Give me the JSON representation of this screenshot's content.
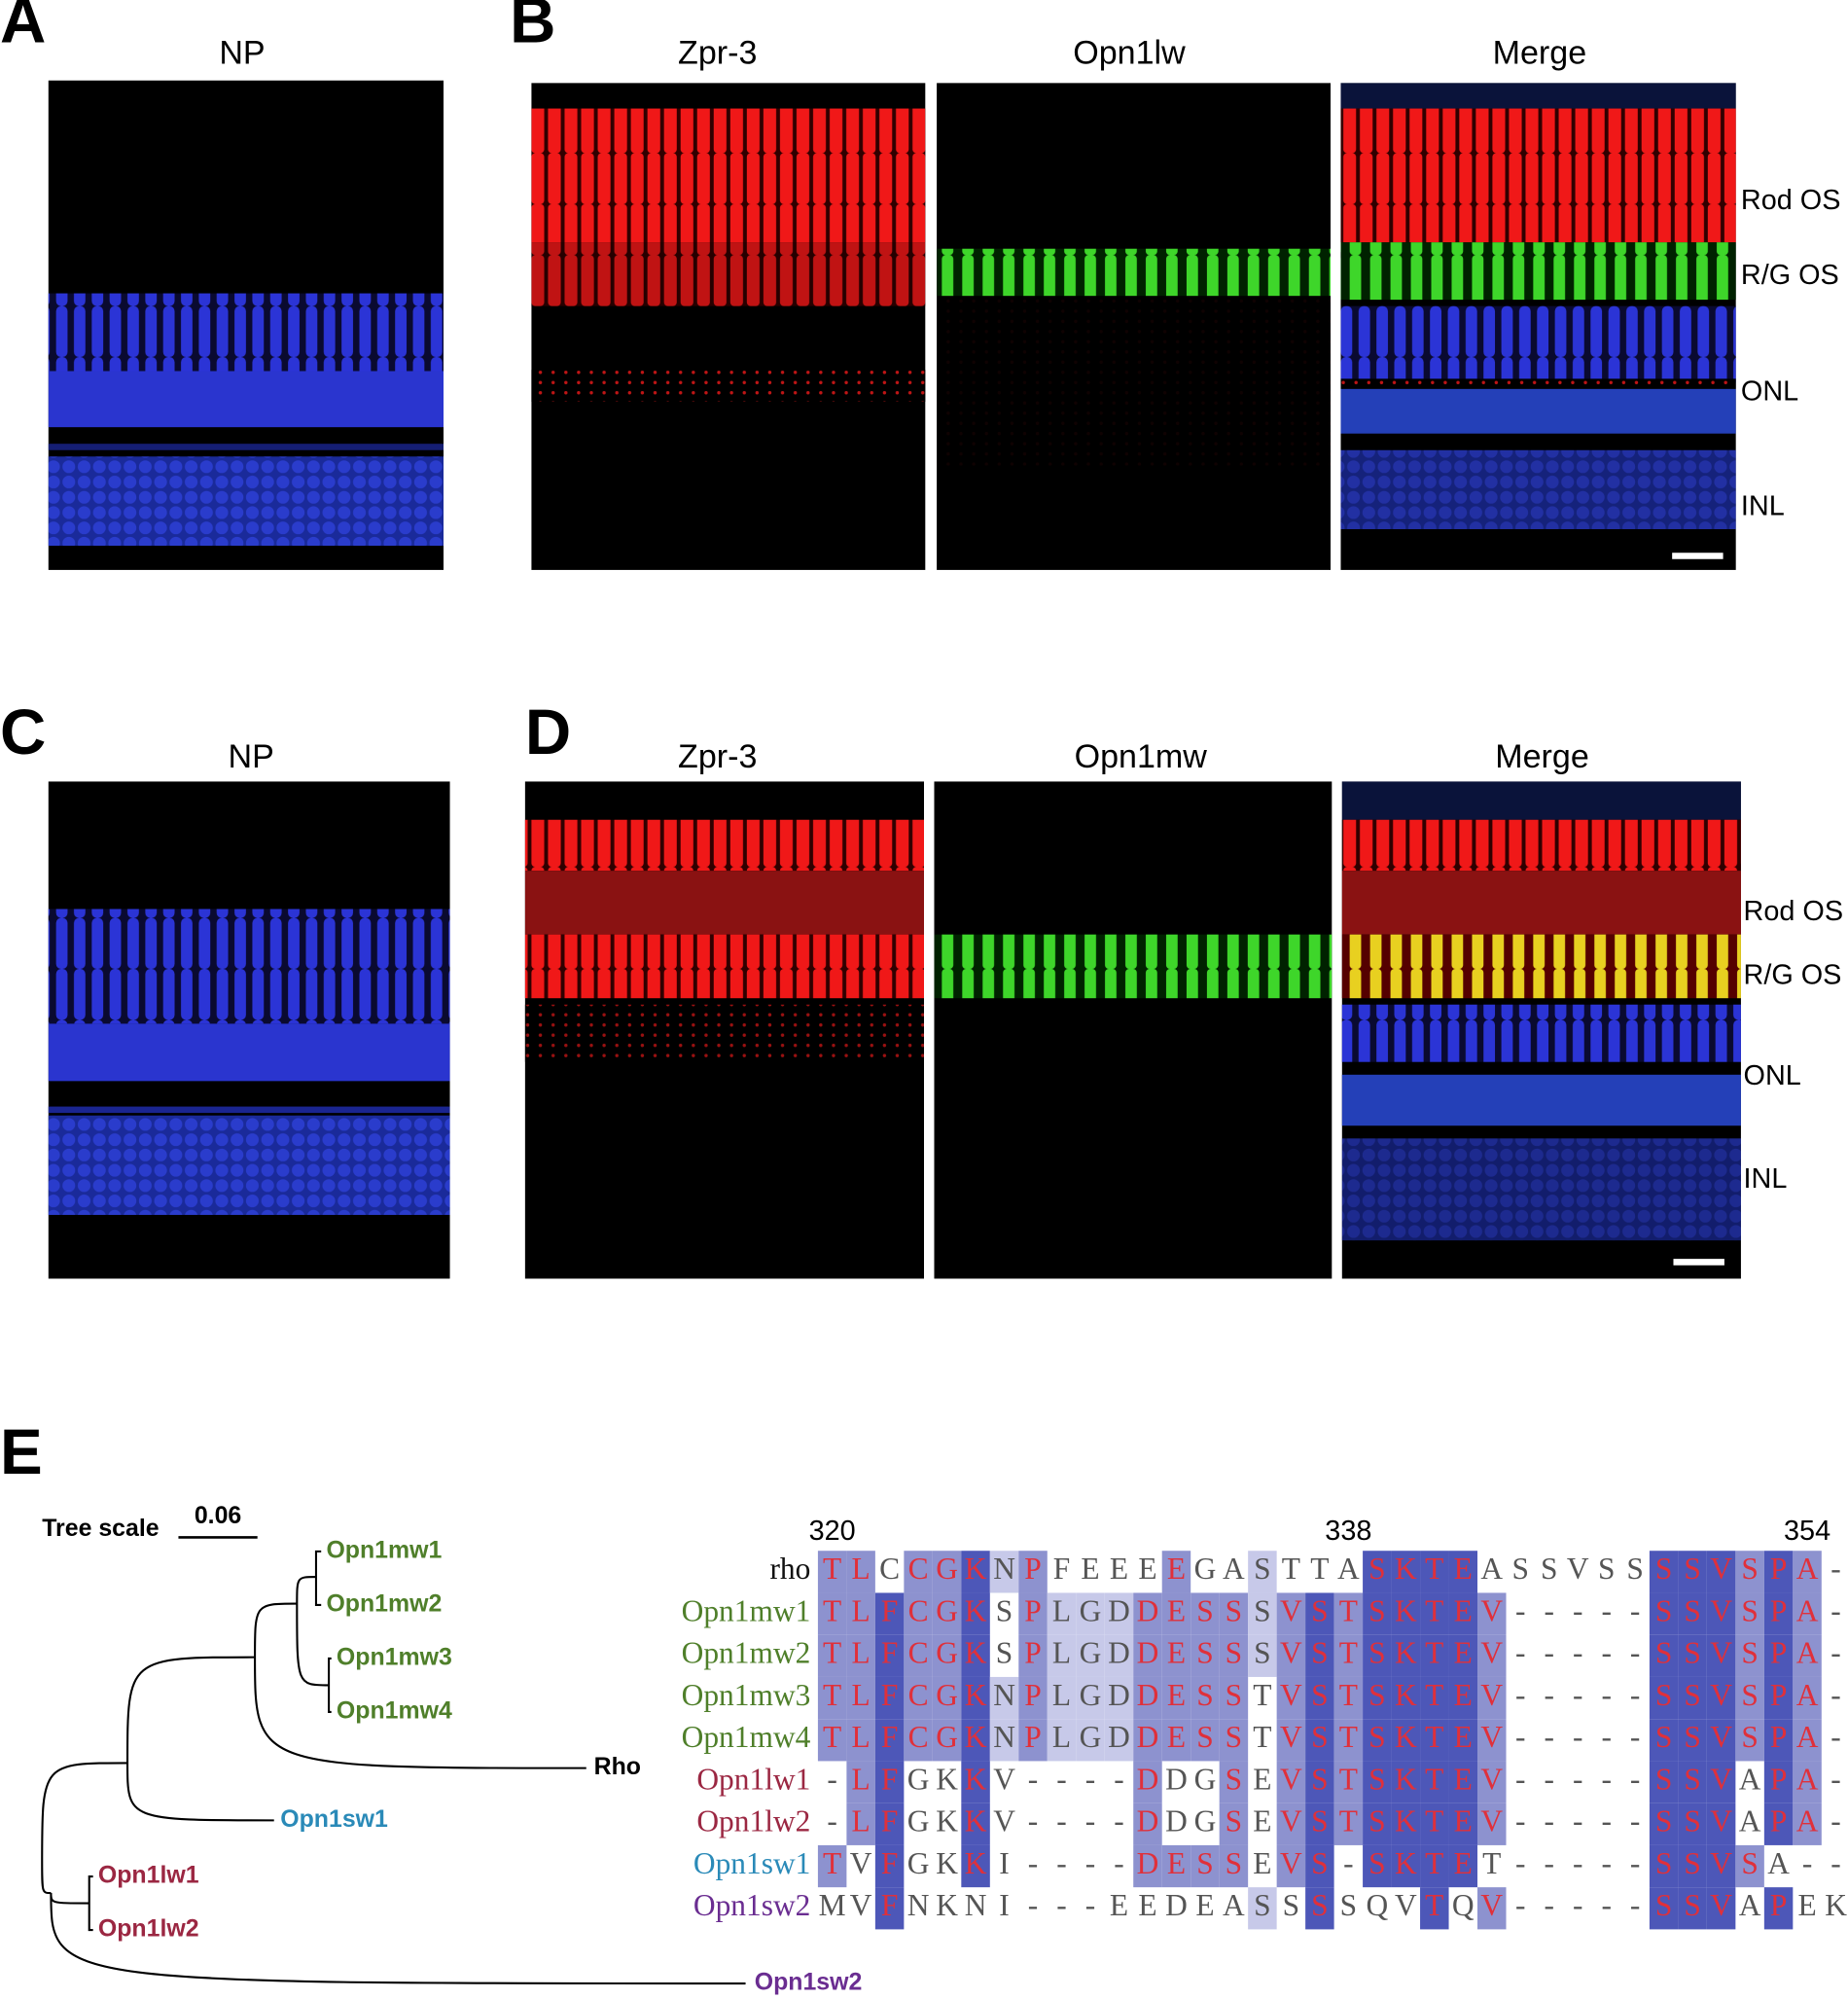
{
  "figure": {
    "A": {
      "label": "A",
      "title": "NP"
    },
    "B": {
      "label": "B",
      "titles": [
        "Zpr-3",
        "Opn1lw",
        "Merge"
      ],
      "layers": [
        "Rod OS",
        "R/G OS",
        "ONL",
        "INL"
      ]
    },
    "C": {
      "label": "C",
      "title": "NP"
    },
    "D": {
      "label": "D",
      "titles": [
        "Zpr-3",
        "Opn1mw",
        "Merge"
      ],
      "layers": [
        "Rod OS",
        "R/G OS",
        "ONL",
        "INL"
      ]
    },
    "E": {
      "label": "E",
      "tree_scale_label": "Tree scale",
      "tree_scale": 0.06,
      "tree_leaves": [
        {
          "name": "Opn1mw1",
          "color": "#4f7f2a"
        },
        {
          "name": "Opn1mw2",
          "color": "#4f7f2a"
        },
        {
          "name": "Opn1mw3",
          "color": "#4f7f2a"
        },
        {
          "name": "Opn1mw4",
          "color": "#4f7f2a"
        },
        {
          "name": "Rho",
          "color": "#000000"
        },
        {
          "name": "Opn1sw1",
          "color": "#2a8ab8"
        },
        {
          "name": "Opn1lw1",
          "color": "#9b2742"
        },
        {
          "name": "Opn1lw2",
          "color": "#9b2742"
        },
        {
          "name": "Opn1sw2",
          "color": "#6a2d91"
        }
      ],
      "positions": [
        320,
        338,
        354
      ],
      "alignment": [
        {
          "name": "rho",
          "color": "#111111",
          "residues": [
            "T",
            "L",
            "C",
            "C",
            "G",
            "K",
            "N",
            "P",
            "F",
            "E",
            "E",
            "E",
            "E",
            "G",
            "A",
            "S",
            "T",
            "T",
            "A",
            "S",
            "K",
            "T",
            "E",
            "A",
            "S",
            "S",
            "V",
            "S",
            "S",
            "S",
            "S",
            "V",
            "S",
            "P",
            "A",
            "-"
          ]
        },
        {
          "name": "Opn1mw1",
          "color": "#4f7f2a",
          "residues": [
            "T",
            "L",
            "F",
            "C",
            "G",
            "K",
            "S",
            "P",
            "L",
            "G",
            "D",
            "D",
            "E",
            "S",
            "S",
            "S",
            "V",
            "S",
            "T",
            "S",
            "K",
            "T",
            "E",
            "V",
            "-",
            "-",
            "-",
            "-",
            "-",
            "S",
            "S",
            "V",
            "S",
            "P",
            "A",
            "-"
          ]
        },
        {
          "name": "Opn1mw2",
          "color": "#4f7f2a",
          "residues": [
            "T",
            "L",
            "F",
            "C",
            "G",
            "K",
            "S",
            "P",
            "L",
            "G",
            "D",
            "D",
            "E",
            "S",
            "S",
            "S",
            "V",
            "S",
            "T",
            "S",
            "K",
            "T",
            "E",
            "V",
            "-",
            "-",
            "-",
            "-",
            "-",
            "S",
            "S",
            "V",
            "S",
            "P",
            "A",
            "-"
          ]
        },
        {
          "name": "Opn1mw3",
          "color": "#4f7f2a",
          "residues": [
            "T",
            "L",
            "F",
            "C",
            "G",
            "K",
            "N",
            "P",
            "L",
            "G",
            "D",
            "D",
            "E",
            "S",
            "S",
            "T",
            "V",
            "S",
            "T",
            "S",
            "K",
            "T",
            "E",
            "V",
            "-",
            "-",
            "-",
            "-",
            "-",
            "S",
            "S",
            "V",
            "S",
            "P",
            "A",
            "-"
          ]
        },
        {
          "name": "Opn1mw4",
          "color": "#4f7f2a",
          "residues": [
            "T",
            "L",
            "F",
            "C",
            "G",
            "K",
            "N",
            "P",
            "L",
            "G",
            "D",
            "D",
            "E",
            "S",
            "S",
            "T",
            "V",
            "S",
            "T",
            "S",
            "K",
            "T",
            "E",
            "V",
            "-",
            "-",
            "-",
            "-",
            "-",
            "S",
            "S",
            "V",
            "S",
            "P",
            "A",
            "-"
          ]
        },
        {
          "name": "Opn1lw1",
          "color": "#9b2742",
          "residues": [
            "-",
            "L",
            "F",
            "G",
            "K",
            "K",
            "V",
            "-",
            "-",
            "-",
            "-",
            "D",
            "D",
            "G",
            "S",
            "E",
            "V",
            "S",
            "T",
            "S",
            "K",
            "T",
            "E",
            "V",
            "-",
            "-",
            "-",
            "-",
            "-",
            "S",
            "S",
            "V",
            "A",
            "P",
            "A",
            "-"
          ]
        },
        {
          "name": "Opn1lw2",
          "color": "#9b2742",
          "residues": [
            "-",
            "L",
            "F",
            "G",
            "K",
            "K",
            "V",
            "-",
            "-",
            "-",
            "-",
            "D",
            "D",
            "G",
            "S",
            "E",
            "V",
            "S",
            "T",
            "S",
            "K",
            "T",
            "E",
            "V",
            "-",
            "-",
            "-",
            "-",
            "-",
            "S",
            "S",
            "V",
            "A",
            "P",
            "A",
            "-"
          ]
        },
        {
          "name": "Opn1sw1",
          "color": "#2a8ab8",
          "residues": [
            "T",
            "V",
            "F",
            "G",
            "K",
            "K",
            "I",
            "-",
            "-",
            "-",
            "-",
            "D",
            "E",
            "S",
            "S",
            "E",
            "V",
            "S",
            "-",
            "S",
            "K",
            "T",
            "E",
            "T",
            "-",
            "-",
            "-",
            "-",
            "-",
            "S",
            "S",
            "V",
            "S",
            "A",
            "-",
            "-"
          ]
        },
        {
          "name": "Opn1sw2",
          "color": "#6a2d91",
          "residues": [
            "M",
            "V",
            "F",
            "N",
            "K",
            "N",
            "I",
            "-",
            "-",
            "-",
            "E",
            "E",
            "D",
            "E",
            "A",
            "S",
            "S",
            "S",
            "S",
            "Q",
            "V",
            "T",
            "Q",
            "V",
            "-",
            "-",
            "-",
            "-",
            "-",
            "S",
            "S",
            "V",
            "A",
            "P",
            "E",
            "K"
          ]
        }
      ]
    }
  }
}
